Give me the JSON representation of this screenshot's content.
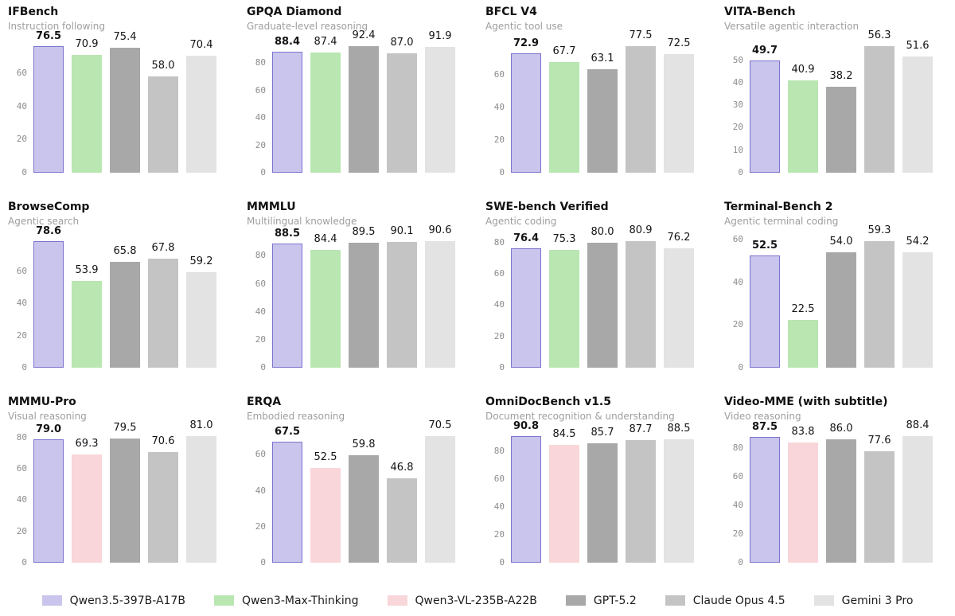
{
  "page": {
    "background": "#ffffff"
  },
  "legend": [
    {
      "label": "Qwen3.5-397B-A17B",
      "fill": "#c9c5ec",
      "border": "#7b74cf"
    },
    {
      "label": "Qwen3-Max-Thinking",
      "fill": "#b9e6b1",
      "border": null
    },
    {
      "label": "Qwen3-VL-235B-A22B",
      "fill": "#f8d6da",
      "border": null
    },
    {
      "label": "GPT-5.2",
      "fill": "#a8a8a8",
      "border": null
    },
    {
      "label": "Claude Opus 4.5",
      "fill": "#c4c4c4",
      "border": null
    },
    {
      "label": "Gemini 3 Pro",
      "fill": "#e3e3e3",
      "border": null
    }
  ],
  "chart_data": [
    {
      "type": "bar",
      "title": "IFBench",
      "subtitle": "Instruction following",
      "ylim": [
        0,
        78.8
      ],
      "yticks": [
        0,
        20,
        40,
        60
      ],
      "grid": false,
      "legend_position": "bottom-shared",
      "series": [
        {
          "name": "Qwen3.5-397B-A17B",
          "value": 76.5
        },
        {
          "name": "Qwen3-Max-Thinking",
          "value": 70.9
        },
        {
          "name": "GPT-5.2",
          "value": 75.4
        },
        {
          "name": "Claude Opus 4.5",
          "value": 58.0
        },
        {
          "name": "Gemini 3 Pro",
          "value": 70.4
        }
      ]
    },
    {
      "type": "bar",
      "title": "GPQA Diamond",
      "subtitle": "Graduate-level reasoning",
      "ylim": [
        0,
        95.2
      ],
      "yticks": [
        0,
        20,
        40,
        60,
        80
      ],
      "grid": false,
      "legend_position": "bottom-shared",
      "series": [
        {
          "name": "Qwen3.5-397B-A17B",
          "value": 88.4
        },
        {
          "name": "Qwen3-Max-Thinking",
          "value": 87.4
        },
        {
          "name": "GPT-5.2",
          "value": 92.4
        },
        {
          "name": "Claude Opus 4.5",
          "value": 87.0
        },
        {
          "name": "Gemini 3 Pro",
          "value": 91.9
        }
      ]
    },
    {
      "type": "bar",
      "title": "BFCL V4",
      "subtitle": "Agentic tool use",
      "ylim": [
        0,
        79.8
      ],
      "yticks": [
        0,
        20,
        40,
        60
      ],
      "grid": false,
      "legend_position": "bottom-shared",
      "series": [
        {
          "name": "Qwen3.5-397B-A17B",
          "value": 72.9
        },
        {
          "name": "Qwen3-Max-Thinking",
          "value": 67.7
        },
        {
          "name": "GPT-5.2",
          "value": 63.1
        },
        {
          "name": "Claude Opus 4.5",
          "value": 77.5
        },
        {
          "name": "Gemini 3 Pro",
          "value": 72.5
        }
      ]
    },
    {
      "type": "bar",
      "title": "VITA-Bench",
      "subtitle": "Versatile agentic interaction",
      "ylim": [
        0,
        58.0
      ],
      "yticks": [
        0,
        10,
        20,
        30,
        40,
        50
      ],
      "grid": false,
      "legend_position": "bottom-shared",
      "series": [
        {
          "name": "Qwen3.5-397B-A17B",
          "value": 49.7
        },
        {
          "name": "Qwen3-Max-Thinking",
          "value": 40.9
        },
        {
          "name": "GPT-5.2",
          "value": 38.2
        },
        {
          "name": "Claude Opus 4.5",
          "value": 56.3
        },
        {
          "name": "Gemini 3 Pro",
          "value": 51.6
        }
      ]
    },
    {
      "type": "bar",
      "title": "BrowseComp",
      "subtitle": "Agentic search",
      "ylim": [
        0,
        81.0
      ],
      "yticks": [
        0,
        20,
        40,
        60
      ],
      "grid": false,
      "legend_position": "bottom-shared",
      "series": [
        {
          "name": "Qwen3.5-397B-A17B",
          "value": 78.6
        },
        {
          "name": "Qwen3-Max-Thinking",
          "value": 53.9
        },
        {
          "name": "GPT-5.2",
          "value": 65.8
        },
        {
          "name": "Claude Opus 4.5",
          "value": 67.8
        },
        {
          "name": "Gemini 3 Pro",
          "value": 59.2
        }
      ]
    },
    {
      "type": "bar",
      "title": "MMMLU",
      "subtitle": "Multilingual knowledge",
      "ylim": [
        0,
        93.3
      ],
      "yticks": [
        0,
        20,
        40,
        60,
        80
      ],
      "grid": false,
      "legend_position": "bottom-shared",
      "series": [
        {
          "name": "Qwen3.5-397B-A17B",
          "value": 88.5
        },
        {
          "name": "Qwen3-Max-Thinking",
          "value": 84.4
        },
        {
          "name": "GPT-5.2",
          "value": 89.5
        },
        {
          "name": "Claude Opus 4.5",
          "value": 90.1
        },
        {
          "name": "Gemini 3 Pro",
          "value": 90.6
        }
      ]
    },
    {
      "type": "bar",
      "title": "SWE-bench Verified",
      "subtitle": "Agentic coding",
      "ylim": [
        0,
        83.3
      ],
      "yticks": [
        0,
        20,
        40,
        60,
        80
      ],
      "grid": false,
      "legend_position": "bottom-shared",
      "series": [
        {
          "name": "Qwen3.5-397B-A17B",
          "value": 76.4
        },
        {
          "name": "Qwen3-Max-Thinking",
          "value": 75.3
        },
        {
          "name": "GPT-5.2",
          "value": 80.0
        },
        {
          "name": "Claude Opus 4.5",
          "value": 80.9
        },
        {
          "name": "Gemini 3 Pro",
          "value": 76.2
        }
      ]
    },
    {
      "type": "bar",
      "title": "Terminal-Bench 2",
      "subtitle": "Agentic terminal coding",
      "ylim": [
        0,
        61.1
      ],
      "yticks": [
        0,
        20,
        40,
        60
      ],
      "grid": false,
      "legend_position": "bottom-shared",
      "series": [
        {
          "name": "Qwen3.5-397B-A17B",
          "value": 52.5
        },
        {
          "name": "Qwen3-Max-Thinking",
          "value": 22.5
        },
        {
          "name": "GPT-5.2",
          "value": 54.0
        },
        {
          "name": "Claude Opus 4.5",
          "value": 59.3
        },
        {
          "name": "Gemini 3 Pro",
          "value": 54.2
        }
      ]
    },
    {
      "type": "bar",
      "title": "MMMU-Pro",
      "subtitle": "Visual reasoning",
      "ylim": [
        0,
        83.4
      ],
      "yticks": [
        0,
        20,
        40,
        60,
        80
      ],
      "grid": false,
      "legend_position": "bottom-shared",
      "series": [
        {
          "name": "Qwen3.5-397B-A17B",
          "value": 79.0
        },
        {
          "name": "Qwen3-VL-235B-A22B",
          "value": 69.3
        },
        {
          "name": "GPT-5.2",
          "value": 79.5
        },
        {
          "name": "Claude Opus 4.5",
          "value": 70.6
        },
        {
          "name": "Gemini 3 Pro",
          "value": 81.0
        }
      ]
    },
    {
      "type": "bar",
      "title": "ERQA",
      "subtitle": "Embodied reasoning",
      "ylim": [
        0,
        72.6
      ],
      "yticks": [
        0,
        20,
        40,
        60
      ],
      "grid": false,
      "legend_position": "bottom-shared",
      "series": [
        {
          "name": "Qwen3.5-397B-A17B",
          "value": 67.5
        },
        {
          "name": "Qwen3-VL-235B-A22B",
          "value": 52.5
        },
        {
          "name": "GPT-5.2",
          "value": 59.8
        },
        {
          "name": "Claude Opus 4.5",
          "value": 46.8
        },
        {
          "name": "Gemini 3 Pro",
          "value": 70.5
        }
      ]
    },
    {
      "type": "bar",
      "title": "OmniDocBench v1.5",
      "subtitle": "Document recognition & understanding",
      "ylim": [
        0,
        93.5
      ],
      "yticks": [
        0,
        20,
        40,
        60,
        80
      ],
      "grid": false,
      "legend_position": "bottom-shared",
      "series": [
        {
          "name": "Qwen3.5-397B-A17B",
          "value": 90.8
        },
        {
          "name": "Qwen3-VL-235B-A22B",
          "value": 84.5
        },
        {
          "name": "GPT-5.2",
          "value": 85.7
        },
        {
          "name": "Claude Opus 4.5",
          "value": 87.7
        },
        {
          "name": "Gemini 3 Pro",
          "value": 88.5
        }
      ]
    },
    {
      "type": "bar",
      "title": "Video-MME (with subtitle)",
      "subtitle": "Video reasoning",
      "ylim": [
        0,
        91.1
      ],
      "yticks": [
        0,
        20,
        40,
        60,
        80
      ],
      "grid": false,
      "legend_position": "bottom-shared",
      "series": [
        {
          "name": "Qwen3.5-397B-A17B",
          "value": 87.5
        },
        {
          "name": "Qwen3-VL-235B-A22B",
          "value": 83.8
        },
        {
          "name": "GPT-5.2",
          "value": 86.0
        },
        {
          "name": "Claude Opus 4.5",
          "value": 77.6
        },
        {
          "name": "Gemini 3 Pro",
          "value": 88.4
        }
      ]
    }
  ]
}
